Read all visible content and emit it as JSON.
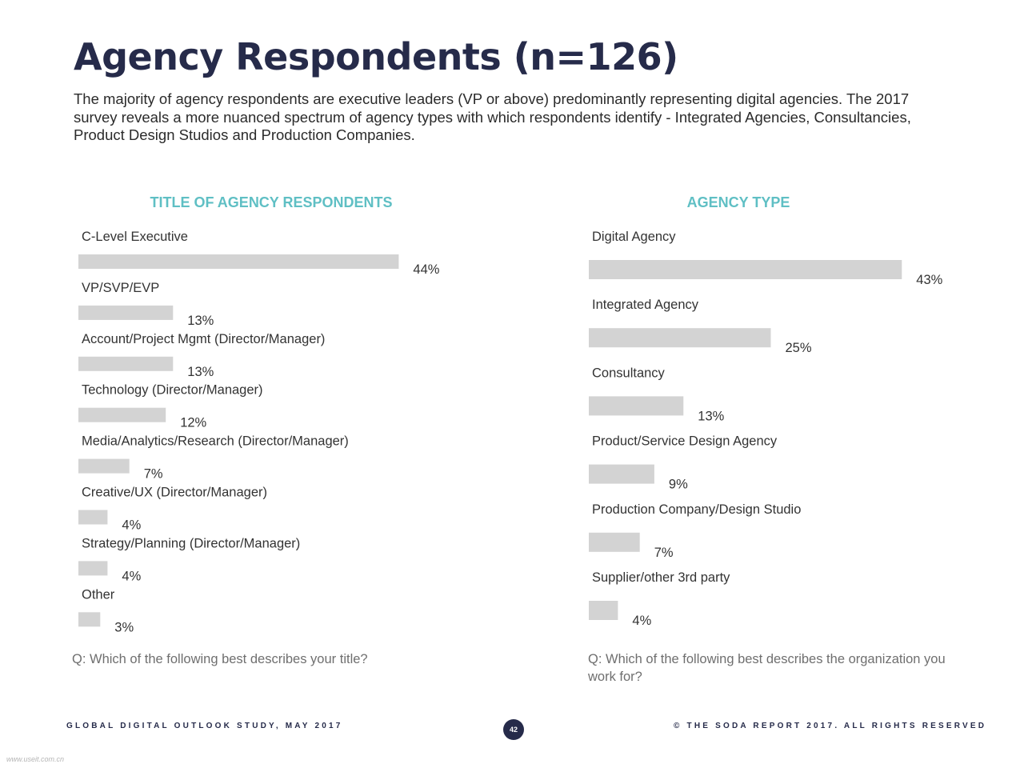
{
  "page": {
    "title": "Agency Respondents (n=126)",
    "intro": "The majority of agency respondents are executive leaders (VP or above) predominantly representing digital agencies. The 2017 survey reveals a more nuanced spectrum of agency types with which respondents identify - Integrated Agencies, Consultancies, Product Design Studios and Production Companies.",
    "footer_left": "GLOBAL DIGITAL OUTLOOK STUDY, MAY 2017",
    "footer_right": "© THE SODA REPORT 2017. ALL RIGHTS RESERVED",
    "page_number": "42",
    "watermark": "www.useit.com.cn"
  },
  "chart_data": [
    {
      "type": "bar",
      "orientation": "horizontal",
      "title": "TITLE OF AGENCY RESPONDENTS",
      "categories": [
        "C-Level Executive",
        "VP/SVP/EVP",
        "Account/Project Mgmt (Director/Manager)",
        "Technology (Director/Manager)",
        "Media/Analytics/Research (Director/Manager)",
        "Creative/UX (Director/Manager)",
        "Strategy/Planning (Director/Manager)",
        "Other"
      ],
      "values": [
        44,
        13,
        13,
        12,
        7,
        4,
        4,
        3
      ],
      "value_labels": [
        "44%",
        "13%",
        "13%",
        "12%",
        "7%",
        "4%",
        "4%",
        "3%"
      ],
      "unit": "%",
      "bar_color": "#d3d3d3",
      "question": "Q: Which of the following best describes your title?"
    },
    {
      "type": "bar",
      "orientation": "horizontal",
      "title": "AGENCY TYPE",
      "categories": [
        "Digital Agency",
        "Integrated Agency",
        "Consultancy",
        "Product/Service Design Agency",
        "Production Company/Design Studio",
        "Supplier/other 3rd party"
      ],
      "values": [
        43,
        25,
        13,
        9,
        7,
        4
      ],
      "value_labels": [
        "43%",
        "25%",
        "13%",
        "9%",
        "7%",
        "4%"
      ],
      "unit": "%",
      "bar_color": "#d3d3d3",
      "question": "Q: Which of the following best describes the organization you work for?"
    }
  ],
  "colors": {
    "title": "#262b4a",
    "chart_title": "#5fbfc4",
    "bar": "#d3d3d3",
    "question": "#6f6f6f"
  }
}
